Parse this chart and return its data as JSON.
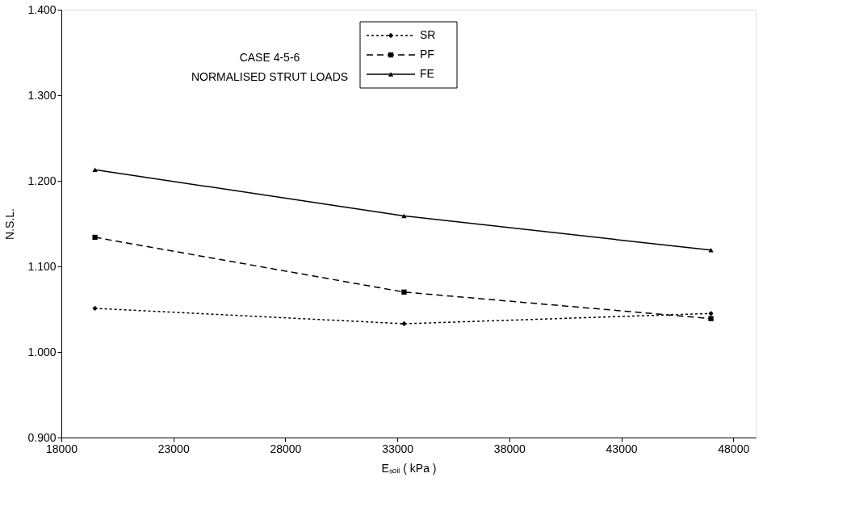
{
  "chart_data": {
    "type": "line",
    "xlabel": "Eₛₒᵢₗ ( kPa )",
    "ylabel": "N.S.L.",
    "x": [
      19500,
      33300,
      47000
    ],
    "series": [
      {
        "name": "SR",
        "color": "#000000",
        "values": [
          1.051,
          1.033,
          1.045
        ],
        "line_style": "dotted",
        "marker": "diamond"
      },
      {
        "name": "PF",
        "color": "#000000",
        "values": [
          1.134,
          1.07,
          1.039
        ],
        "line_style": "dashed",
        "marker": "square"
      },
      {
        "name": "FE",
        "color": "#000000",
        "values": [
          1.213,
          1.159,
          1.119
        ],
        "line_style": "solid",
        "marker": "triangle"
      }
    ],
    "xlim": [
      18000,
      49000
    ],
    "xticks": [
      18000,
      23000,
      28000,
      33000,
      38000,
      43000,
      48000
    ],
    "ylim": [
      0.9,
      1.4
    ],
    "yticks": [
      {
        "value": 0.9,
        "label": "0.900"
      },
      {
        "value": 1.0,
        "label": "1.000"
      },
      {
        "value": 1.1,
        "label": "1.100"
      },
      {
        "value": 1.2,
        "label": "1.200"
      },
      {
        "value": 1.3,
        "label": "1.300"
      },
      {
        "value": 1.4,
        "label": "1.400"
      }
    ],
    "annotations": [
      {
        "text": "CASE 4-5-6"
      },
      {
        "text": "NORMALISED STRUT LOADS"
      }
    ],
    "grid": false,
    "legend": "top"
  }
}
